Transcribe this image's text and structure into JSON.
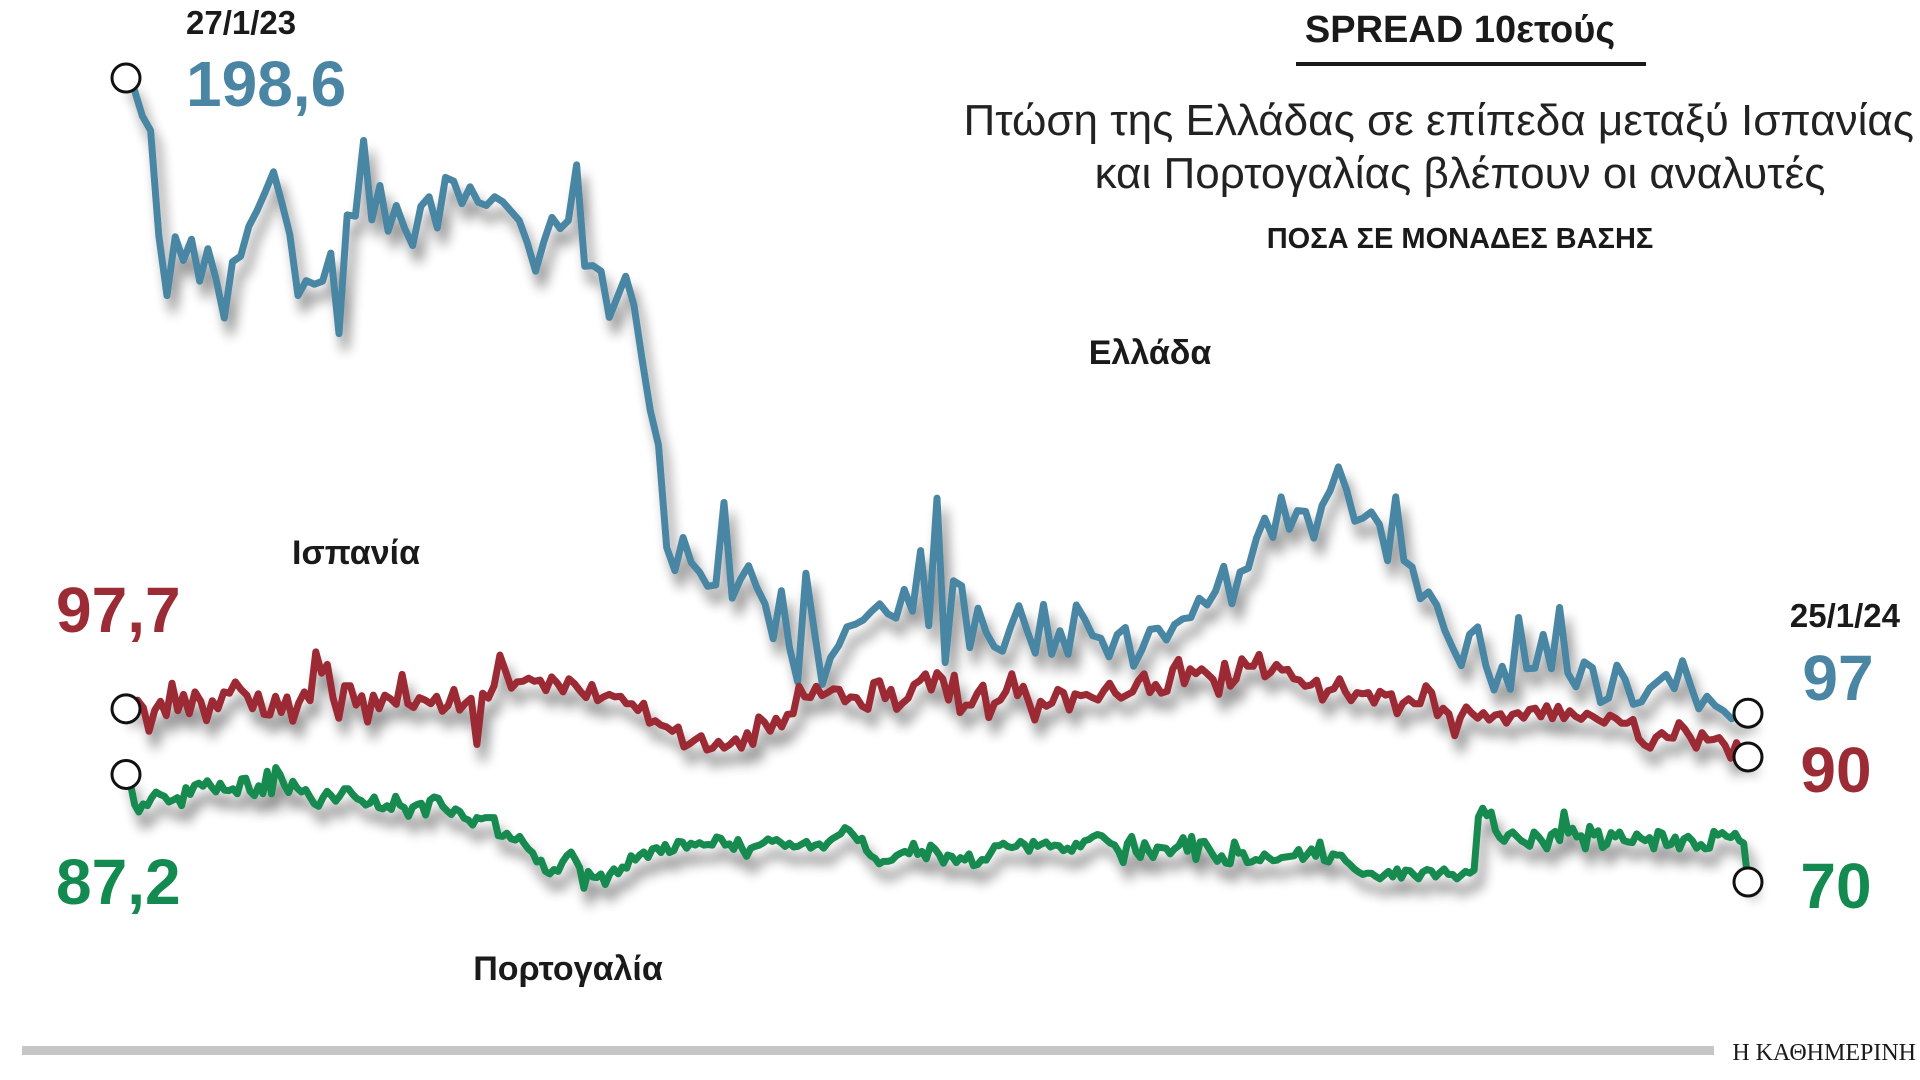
{
  "chart_data": {
    "type": "line",
    "title": "SPREAD 10ετούς",
    "subtitle_line1": "Πτώση της Ελλάδας σε επίπεδα μεταξύ Ισπανίας",
    "subtitle_line2": "και Πορτογαλίας βλέπουν οι αναλυτές",
    "unit_label": "ΠΟΣΑ ΣΕ ΜΟΝΑΔΕΣ ΒΑΣΗΣ",
    "start_date": "27/1/23",
    "end_date": "25/1/24",
    "source": "Η ΚΑΘΗΜΕΡΙΝΗ",
    "series": [
      {
        "name": "Ελλάδα",
        "color": "#4a86a3",
        "start_label": "198,6",
        "end_label": "97",
        "values": [
          198.6,
          196.8,
          192.5,
          190.2,
          173.4,
          163.8,
          173.2,
          169.4,
          172.8,
          166.1,
          171.3,
          166.4,
          160.2,
          169.2,
          170.1,
          174.9,
          177.4,
          180.4,
          183.6,
          178.8,
          173.6,
          163.8,
          166.2,
          165.6,
          166.1,
          170.6,
          157.7,
          176.7,
          176.5,
          188.6,
          175.9,
          181.4,
          174.1,
          178.2,
          174.6,
          171.8,
          178.1,
          179.6,
          174.6,
          182.7,
          182.1,
          178.5,
          181.2,
          178.7,
          178.2,
          179.6,
          178.8,
          177.3,
          175.8,
          172.2,
          167.7,
          172.4,
          176.3,
          174.5,
          175.8,
          184.7,
          168.5,
          168.6,
          167.7,
          160.3,
          163.6,
          166.9,
          162.3,
          153.6,
          145.4,
          139.9,
          123.5,
          119.8,
          125.1,
          121.1,
          119.6,
          117.3,
          117.5,
          130.7,
          115.4,
          118.4,
          120.6,
          117.1,
          114.5,
          108.9,
          116.6,
          107.5,
          102.0,
          119.4,
          110.4,
          101.6,
          105.9,
          107.8,
          110.8,
          111.2,
          111.9,
          113.3,
          114.5,
          112.9,
          112.2,
          116.8,
          113.3,
          123.0,
          111.0,
          131.4,
          105.1,
          118.2,
          117.4,
          107.5,
          113.8,
          109.9,
          107.6,
          106.9,
          110.8,
          114.2,
          110.2,
          106.6,
          114.4,
          106.4,
          110.2,
          106.4,
          114.3,
          112.1,
          109.4,
          109.0,
          106.0,
          109.6,
          110.7,
          104.5,
          107.1,
          110.4,
          110.6,
          108.7,
          111.2,
          112.1,
          112.3,
          115.4,
          114.3,
          116.5,
          120.5,
          114.5,
          119.6,
          120.2,
          125.0,
          128.2,
          125.1,
          131.6,
          126.4,
          129.4,
          129.3,
          125.0,
          130.2,
          132.6,
          136.4,
          132.7,
          127.7,
          128.2,
          129.2,
          127.2,
          121.4,
          131.6,
          121.4,
          120.4,
          115.3,
          116.4,
          114.3,
          110.2,
          107.3,
          104.6,
          109.6,
          110.8,
          104.6,
          100.7,
          104.5,
          100.8,
          112.3,
          104.1,
          104.2,
          109.6,
          104.1,
          113.9,
          103.4,
          101.2,
          105.2,
          104.3,
          98.7,
          99.4,
          104.7,
          102.4,
          98.4,
          98.8,
          101.0,
          102.1,
          103.2,
          100.9,
          105.4,
          101.4,
          97.7,
          99.7,
          98.2,
          97.4,
          96.1,
          96.8,
          97.0
        ]
      },
      {
        "name": "Ισπανία",
        "color": "#9b2c35",
        "start_label": "97,7",
        "end_label": "90",
        "values": [
          97.7,
          98.0,
          99.1,
          97.9,
          94.1,
          97.5,
          98.9,
          96.6,
          101.8,
          97.4,
          100.0,
          96.9,
          100.4,
          98.9,
          95.8,
          99.0,
          97.7,
          100.4,
          100.2,
          102.0,
          100.8,
          99.9,
          97.7,
          100.1,
          96.8,
          96.7,
          99.7,
          97.1,
          99.6,
          95.7,
          98.6,
          100.4,
          99.0,
          106.8,
          103.4,
          104.8,
          99.4,
          96.2,
          101.4,
          101.4,
          98.3,
          99.8,
          95.6,
          99.9,
          97.7,
          99.9,
          99.3,
          98.4,
          103.2,
          98.5,
          97.9,
          99.5,
          99.1,
          98.5,
          99.7,
          97.3,
          98.2,
          100.8,
          97.5,
          98.6,
          99.4,
          92.0,
          100.2,
          99.4,
          101.4,
          106.3,
          103.7,
          101.0,
          102.0,
          102.1,
          102.6,
          102.1,
          102.3,
          100.6,
          102.8,
          101.8,
          100.4,
          102.5,
          101.7,
          100.5,
          99.5,
          101.6,
          99.0,
          99.6,
          100.0,
          99.6,
          99.7,
          98.5,
          98.5,
          97.4,
          98.6,
          95.4,
          95.8,
          95.1,
          94.8,
          94.1,
          94.8,
          91.6,
          92.1,
          92.8,
          93.4,
          91.1,
          91.4,
          92.5,
          91.4,
          92.0,
          92.9,
          91.4,
          93.9,
          92.0,
          96.4,
          95.6,
          94.1,
          96.2,
          94.8,
          96.8,
          96.9,
          101.3,
          99.6,
          99.5,
          101.3,
          99.8,
          100.3,
          100.9,
          100.8,
          98.8,
          99.6,
          99.5,
          98.1,
          97.6,
          101.9,
          102.2,
          99.3,
          100.8,
          97.6,
          98.6,
          99.4,
          101.6,
          102.2,
          103.3,
          100.7,
          103.5,
          102.5,
          99.1,
          103.1,
          97.1,
          98.3,
          98.3,
          100.2,
          101.5,
          96.3,
          98.6,
          99.1,
          100.5,
          103.3,
          99.8,
          101.3,
          98.7,
          95.9,
          98.9,
          98.1,
          98.6,
          100.8,
          100.3,
          97.5,
          100.1,
          99.8,
          100.0,
          99.5,
          99.1,
          100.6,
          101.8,
          100.2,
          99.4,
          99.9,
          100.4,
          102.2,
          103.3,
          100.3,
          101.6,
          100.2,
          100.5,
          104.1,
          105.6,
          101.7,
          104.1,
          103.3,
          104.1,
          103.3,
          102.4,
          100.0,
          105.0,
          101.3,
          102.4,
          105.7,
          104.5,
          104.5,
          106.4,
          102.8,
          103.5,
          104.8,
          103.9,
          104.0,
          102.5,
          102.3,
          101.3,
          101.5,
          102.3,
          99.1,
          100.6,
          100.9,
          102.5,
          100.4,
          99.0,
          100.3,
          100.1,
          100.3,
          98.6,
          100.5,
          99.9,
          100.1,
          96.9,
          98.6,
          99.3,
          98.5,
          98.5,
          101.4,
          100.3,
          96.6,
          97.8,
          96.9,
          93.4,
          96.3,
          98.0,
          97.0,
          96.2,
          97.1,
          95.9,
          96.7,
          96.9,
          95.4,
          96.8,
          97.1,
          96.2,
          97.6,
          97.8,
          96.4,
          98.2,
          96.1,
          98.1,
          96.1,
          97.4,
          96.5,
          96.0,
          97.0,
          96.5,
          95.9,
          95.4,
          96.7,
          96.2,
          95.4,
          95.4,
          96.0,
          92.9,
          91.9,
          91.4,
          93.2,
          93.9,
          93.1,
          93.0,
          95.5,
          94.5,
          93.1,
          91.4,
          93.9,
          92.7,
          92.8,
          93.1,
          91.9,
          89.8,
          92.3,
          90.5,
          90.0
        ]
      },
      {
        "name": "Πορτογαλία",
        "color": "#138a4f",
        "start_label": "87,2",
        "end_label": "70",
        "values": [
          87.2,
          85.8,
          82.4,
          81.2,
          82.5,
          82.2,
          83.5,
          84.4,
          84.0,
          83.7,
          82.8,
          83.1,
          83.5,
          82.2,
          85.1,
          84.0,
          85.5,
          85.8,
          85.3,
          86.2,
          85.2,
          84.4,
          85.8,
          84.7,
          84.6,
          84.9,
          84.1,
          86.5,
          86.6,
          84.5,
          83.8,
          85.4,
          84.1,
          87.7,
          84.1,
          88.3,
          87.2,
          85.5,
          84.3,
          86.1,
          85.0,
          84.4,
          84.8,
          83.6,
          82.5,
          82.1,
          83.5,
          84.5,
          83.8,
          82.9,
          83.8,
          84.9,
          84.9,
          84.0,
          83.3,
          83.0,
          82.3,
          82.6,
          83.6,
          81.9,
          81.7,
          82.2,
          81.6,
          83.7,
          82.3,
          81.9,
          80.5,
          82.0,
          82.4,
          82.6,
          80.7,
          83.1,
          83.6,
          83.4,
          82.1,
          81.4,
          80.8,
          81.7,
          81.3,
          80.2,
          79.9,
          79.1,
          80.3,
          80.1,
          80.3,
          80.3,
          80.3,
          77.4,
          77.3,
          77.8,
          76.9,
          76.7,
          77.3,
          76.2,
          75.3,
          74.7,
          73.2,
          73.5,
          71.7,
          71.3,
          72.0,
          71.7,
          73.2,
          74.2,
          74.8,
          73.6,
          72.3,
          69.0,
          71.7,
          70.8,
          70.7,
          71.3,
          69.6,
          71.2,
          72.1,
          71.3,
          72.4,
          72.2,
          74.2,
          73.5,
          74.3,
          74.8,
          73.9,
          75.3,
          75.5,
          74.7,
          76.0,
          74.7,
          75.0,
          76.5,
          76.4,
          75.4,
          76.2,
          75.9,
          76.3,
          75.9,
          76.0,
          75.9,
          77.2,
          77.0,
          75.9,
          76.1,
          75.2,
          76.8,
          75.3,
          74.1,
          75.4,
          75.7,
          75.9,
          76.3,
          76.9,
          76.5,
          76.8,
          76.3,
          75.7,
          76.2,
          75.6,
          75.7,
          76.1,
          76.5,
          75.4,
          75.9,
          76.1,
          75.4,
          76.3,
          76.9,
          77.3,
          77.7,
          78.7,
          78.3,
          77.5,
          76.6,
          77.0,
          75.0,
          74.2,
          73.8,
          72.9,
          73.3,
          73.3,
          73.5,
          74.2,
          74.6,
          74.9,
          74.5,
          76.2,
          74.4,
          74.9,
          73.7,
          75.9,
          75.3,
          74.4,
          73.0,
          74.3,
          74.1,
          73.1,
          73.9,
          73.5,
          74.5,
          72.6,
          72.8,
          73.6,
          73.5,
          74.6,
          75.8,
          75.8,
          76.2,
          75.7,
          75.5,
          75.7,
          76.5,
          76.0,
          74.9,
          76.5,
          75.7,
          76.1,
          76.4,
          75.6,
          75.9,
          75.8,
          75.0,
          75.4,
          74.9,
          76.2,
          75.6,
          76.6,
          76.8,
          77.3,
          77.6,
          77.4,
          76.8,
          76.2,
          75.9,
          74.8,
          73.1,
          76.2,
          77.3,
          74.8,
          73.9,
          76.3,
          74.9,
          73.9,
          75.6,
          75.5,
          75.4,
          74.5,
          75.3,
          75.8,
          77.1,
          74.9,
          77.3,
          73.6,
          76.4,
          76.5,
          75.4,
          74.3,
          73.3,
          74.2,
          73.0,
          72.9,
          76.4,
          74.6,
          74.7,
          73.1,
          73.2,
          73.6,
          73.4,
          74.5,
          73.9,
          73.4,
          73.5,
          73.9,
          74.0,
          74.1,
          74.2,
          75.2,
          73.6,
          74.4,
          75.3,
          74.1,
          76.4,
          73.4,
          73.2,
          74.5,
          74.3,
          74.3,
          73.4,
          72.8,
          72.1,
          71.6,
          71.2,
          71.4,
          71.4,
          70.9,
          70.5,
          71.1,
          71.7,
          70.8,
          72.1,
          70.6,
          71.9,
          71.8,
          71.1,
          70.5,
          71.6,
          72.0,
          71.8,
          70.8,
          71.5,
          72.1,
          71.2,
          71.2,
          70.5,
          71.1,
          71.7,
          71.4,
          71.9,
          80.4,
          81.8,
          80.6,
          81.2,
          78.2,
          77.1,
          76.5,
          77.6,
          78.0,
          77.3,
          76.6,
          76.2,
          75.7,
          78.0,
          77.3,
          76.4,
          75.3,
          77.6,
          78.1,
          76.6,
          81.2,
          77.8,
          78.6,
          77.2,
          77.4,
          75.3,
          78.9,
          77.5,
          78.2,
          75.5,
          76.0,
          77.9,
          77.2,
          78.0,
          76.6,
          76.4,
          76.3,
          77.7,
          77.0,
          76.6,
          77.1,
          75.3,
          78.1,
          77.8,
          75.8,
          76.0,
          77.2,
          75.3,
          76.9,
          77.3,
          76.6,
          75.4,
          76.0,
          75.3,
          75.4,
          78.1,
          77.5,
          77.9,
          77.3,
          77.1,
          77.8,
          76.6,
          76.2,
          70.0
        ]
      }
    ]
  }
}
